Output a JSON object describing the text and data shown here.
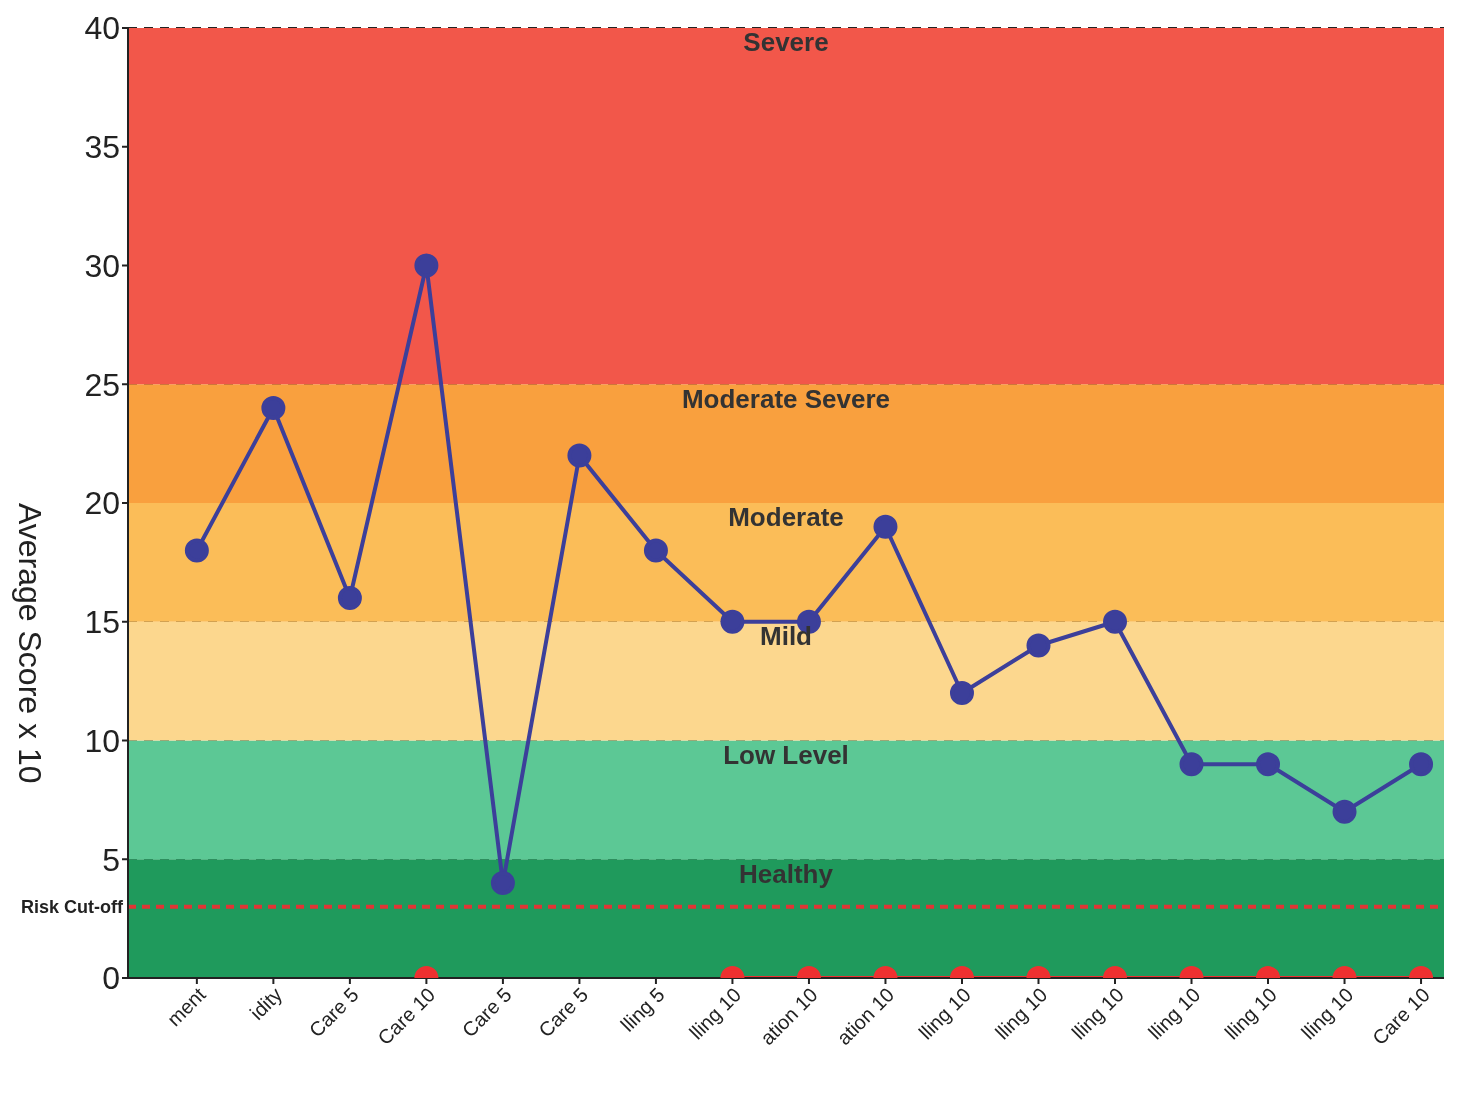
{
  "chart_data": {
    "type": "line",
    "ylabel": "Average Score x 10",
    "categories": [
      "ment",
      "idity",
      "Care 5",
      "Care 10",
      "Care 5",
      "Care 5",
      "lling 5",
      "lling 10",
      "ation 10",
      "ation 10",
      "lling 10",
      "lling 10",
      "lling 10",
      "lling 10",
      "lling 10",
      "lling 10",
      "Care 10"
    ],
    "series": [
      {
        "color": "#3c3f9a",
        "values": [
          18,
          24,
          16,
          30,
          4,
          22,
          18,
          15,
          15,
          19,
          12,
          14,
          15,
          9,
          9,
          7,
          9
        ]
      },
      {
        "color": "#ee3030",
        "values": [
          null,
          null,
          null,
          0,
          null,
          null,
          null,
          0,
          0,
          0,
          0,
          0,
          0,
          0,
          0,
          0,
          0
        ]
      }
    ],
    "ylim": [
      0,
      40
    ],
    "yticks": [
      0,
      5,
      10,
      15,
      20,
      25,
      30,
      35,
      40
    ],
    "grid": "y",
    "legend": false,
    "marker": "circle",
    "line_style": "solid",
    "bands": [
      {
        "axis": "y",
        "from": 0,
        "to": 5,
        "label": "Healthy",
        "color": "#1f9a5c"
      },
      {
        "axis": "y",
        "from": 5,
        "to": 10,
        "label": "Low Level",
        "color": "#5cc895"
      },
      {
        "axis": "y",
        "from": 10,
        "to": 15,
        "label": "Mild",
        "color": "#fcd78e"
      },
      {
        "axis": "y",
        "from": 15,
        "to": 20,
        "label": "Moderate",
        "color": "#fbbd58"
      },
      {
        "axis": "y",
        "from": 20,
        "to": 25,
        "label": "Moderate Severe",
        "color": "#f9a03e"
      },
      {
        "axis": "y",
        "from": 25,
        "to": 40,
        "label": "Severe",
        "color": "#f2574a"
      }
    ],
    "ref_lines": [
      {
        "axis": "y",
        "value": 3,
        "label": "Risk Cut-off",
        "color": "#e03535",
        "line_style": "dashed"
      }
    ]
  }
}
